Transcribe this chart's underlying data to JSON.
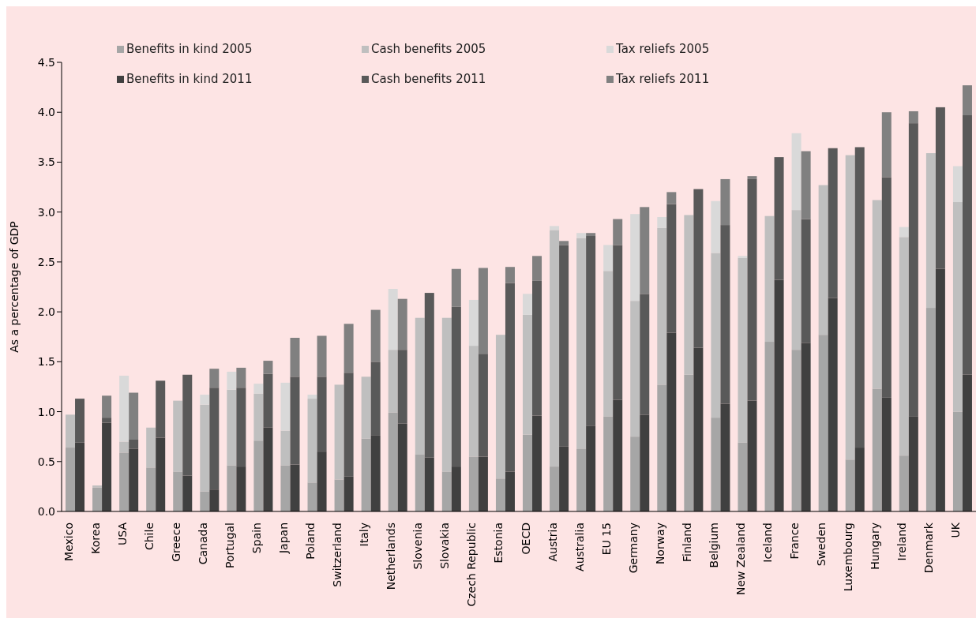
{
  "chart_data": {
    "type": "bar",
    "stacked": true,
    "ylabel": "As a percentage of GDP",
    "categories": [
      "Mexico",
      null,
      "Korea",
      null,
      "USA",
      null,
      "Chile",
      null,
      "Greece",
      null,
      "Canada",
      null,
      "Portugal",
      null,
      "Spain",
      null,
      "Japan",
      null,
      "Poland",
      null,
      "Switzerland",
      null,
      "Italy",
      null,
      "Netherlands",
      null,
      "Slovenia",
      null,
      "Slovakia",
      null,
      "Czech Republic",
      null,
      "Estonia",
      null,
      "OECD",
      null,
      "Austria",
      null,
      "Australia",
      null,
      "EU 15",
      null,
      "Germany",
      null,
      "Norway",
      null,
      "Finland",
      null,
      "Belgium",
      null,
      "New Zealand",
      null,
      "Iceland",
      null,
      "France",
      null,
      "Sweden",
      null,
      "Luxembourg",
      null,
      "Hungary",
      null,
      "Ireland",
      null,
      "Denmark",
      null,
      "UK",
      null
    ],
    "series": [
      {
        "name": "Benefits in kind 2005",
        "color": "#a6a6a6",
        "values": [
          0.64,
          null,
          0.24,
          null,
          0.59,
          null,
          0.44,
          null,
          0.4,
          null,
          0.2,
          null,
          0.46,
          null,
          0.71,
          null,
          0.46,
          null,
          0.29,
          null,
          0.32,
          null,
          0.73,
          null,
          0.99,
          null,
          0.57,
          null,
          0.4,
          null,
          0.55,
          null,
          0.33,
          null,
          0.77,
          null,
          0.45,
          null,
          0.63,
          null,
          0.95,
          null,
          0.75,
          null,
          1.27,
          null,
          1.37,
          null,
          0.94,
          null,
          0.69,
          null,
          1.7,
          null,
          1.62,
          null,
          1.77,
          null,
          0.52,
          null,
          1.23,
          null,
          0.56,
          null,
          2.04,
          null,
          1.0,
          null
        ]
      },
      {
        "name": "Cash benefits 2005",
        "color": "#bfbfbf",
        "values": [
          0.33,
          null,
          0.02,
          null,
          0.11,
          null,
          0.4,
          null,
          0.71,
          null,
          0.87,
          null,
          0.76,
          null,
          0.47,
          null,
          0.35,
          null,
          0.84,
          null,
          0.95,
          null,
          0.62,
          null,
          0.63,
          null,
          1.37,
          null,
          1.54,
          null,
          1.11,
          null,
          1.44,
          null,
          1.2,
          null,
          2.37,
          null,
          2.11,
          null,
          1.46,
          null,
          1.36,
          null,
          1.57,
          null,
          1.6,
          null,
          1.65,
          null,
          1.85,
          null,
          1.26,
          null,
          1.4,
          null,
          1.5,
          null,
          3.05,
          null,
          1.89,
          null,
          2.19,
          null,
          1.55,
          null,
          2.1,
          null
        ]
      },
      {
        "name": "Tax reliefs 2005",
        "color": "#d9d9d9",
        "values": [
          0,
          null,
          0,
          null,
          0.66,
          null,
          0,
          null,
          0,
          null,
          0.1,
          null,
          0.18,
          null,
          0.1,
          null,
          0.48,
          null,
          0.04,
          null,
          0,
          null,
          0,
          null,
          0.61,
          null,
          0,
          null,
          0,
          null,
          0.46,
          null,
          0,
          null,
          0.21,
          null,
          0.04,
          null,
          0.05,
          null,
          0.26,
          null,
          0.87,
          null,
          0.11,
          null,
          0,
          null,
          0.52,
          null,
          0.02,
          null,
          0,
          null,
          0.77,
          null,
          0,
          null,
          0,
          null,
          0,
          null,
          0.1,
          null,
          0,
          null,
          0.36,
          null
        ]
      },
      {
        "name": "Benefits in kind 2011",
        "color": "#404040",
        "values": [
          null,
          0.69,
          null,
          0.89,
          null,
          0.63,
          null,
          0.74,
          null,
          0.36,
          null,
          0.22,
          null,
          0.45,
          null,
          0.84,
          null,
          0.47,
          null,
          0.6,
          null,
          0.35,
          null,
          0.76,
          null,
          0.88,
          null,
          0.54,
          null,
          0.45,
          null,
          0.55,
          null,
          0.4,
          null,
          0.96,
          null,
          0.65,
          null,
          0.86,
          null,
          1.12,
          null,
          0.97,
          null,
          1.79,
          null,
          1.64,
          null,
          1.08,
          null,
          1.11,
          null,
          2.32,
          null,
          1.69,
          null,
          2.14,
          null,
          0.64,
          null,
          1.14,
          null,
          0.95,
          null,
          2.43,
          null,
          1.37
        ]
      },
      {
        "name": "Cash benefits 2011",
        "color": "#595959",
        "values": [
          null,
          0.44,
          null,
          0.05,
          null,
          0.09,
          null,
          0.57,
          null,
          1.01,
          null,
          1.02,
          null,
          0.79,
          null,
          0.54,
          null,
          0.88,
          null,
          0.75,
          null,
          1.04,
          null,
          0.74,
          null,
          0.74,
          null,
          1.65,
          null,
          1.6,
          null,
          1.03,
          null,
          1.89,
          null,
          1.35,
          null,
          2.02,
          null,
          1.9,
          null,
          1.55,
          null,
          1.21,
          null,
          1.29,
          null,
          1.59,
          null,
          1.79,
          null,
          2.22,
          null,
          1.23,
          null,
          1.24,
          null,
          1.5,
          null,
          3.01,
          null,
          2.21,
          null,
          2.94,
          null,
          1.62,
          null,
          2.6
        ]
      },
      {
        "name": "Tax reliefs 2011",
        "color": "#808080",
        "values": [
          null,
          0,
          null,
          0.22,
          null,
          0.47,
          null,
          0,
          null,
          0,
          null,
          0.19,
          null,
          0.2,
          null,
          0.13,
          null,
          0.39,
          null,
          0.41,
          null,
          0.49,
          null,
          0.52,
          null,
          0.51,
          null,
          0,
          null,
          0.38,
          null,
          0.86,
          null,
          0.16,
          null,
          0.25,
          null,
          0.04,
          null,
          0.03,
          null,
          0.26,
          null,
          0.87,
          null,
          0.12,
          null,
          0,
          null,
          0.46,
          null,
          0.03,
          null,
          0,
          null,
          0.68,
          null,
          0,
          null,
          0,
          null,
          0.65,
          null,
          0.12,
          null,
          0,
          null,
          0.3
        ]
      }
    ],
    "ylim": [
      0,
      4.5
    ],
    "yticks": [
      {
        "value": 0,
        "label": "0.0"
      },
      {
        "value": 0.5,
        "label": "0.5"
      },
      {
        "value": 1,
        "label": "1.0"
      },
      {
        "value": 1.5,
        "label": "1.5"
      },
      {
        "value": 2,
        "label": "2.0"
      },
      {
        "value": 2.5,
        "label": "2.5"
      },
      {
        "value": 3,
        "label": "3.0"
      },
      {
        "value": 3.5,
        "label": "3.5"
      },
      {
        "value": 4,
        "label": "4.0"
      },
      {
        "value": 4.5,
        "label": "4.5"
      }
    ],
    "grid": false,
    "legend": "top"
  }
}
